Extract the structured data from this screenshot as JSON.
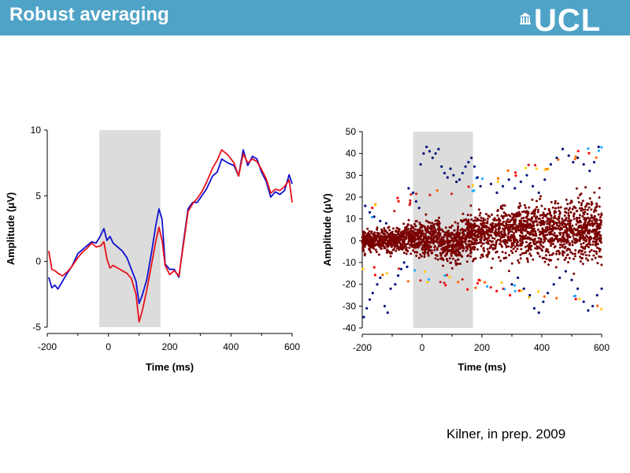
{
  "slide": {
    "title": "Robust averaging",
    "logo_text": "UCL",
    "citation": "Kilner, in prep. 2009"
  },
  "colors": {
    "header": "#4fa3c7",
    "shade": "#dcdcdc",
    "blue": "#1010d0",
    "red": "#e8101a",
    "dark_red": "#7a0000",
    "navy": "#00107a"
  },
  "chart_data": [
    {
      "type": "line",
      "xlabel": "Time (ms)",
      "ylabel": "Amplitude (μV)",
      "xlim": [
        -200,
        600
      ],
      "ylim": [
        -5,
        10
      ],
      "xticks": [
        -200,
        0,
        200,
        400,
        600
      ],
      "yticks": [
        -5,
        0,
        5,
        10
      ],
      "shaded_region": [
        -30,
        170
      ],
      "series": [
        {
          "color": "#1010d0",
          "x": [
            -195,
            -185,
            -175,
            -165,
            -150,
            -135,
            -120,
            -100,
            -85,
            -70,
            -55,
            -40,
            -25,
            -15,
            -5,
            5,
            15,
            30,
            45,
            60,
            75,
            90,
            100,
            110,
            125,
            140,
            155,
            165,
            175,
            185,
            200,
            215,
            230,
            245,
            260,
            275,
            290,
            305,
            320,
            340,
            355,
            370,
            390,
            410,
            425,
            440,
            455,
            470,
            485,
            500,
            515,
            530,
            545,
            560,
            575,
            590,
            600
          ],
          "y": [
            -1.2,
            -2.0,
            -1.8,
            -2.1,
            -1.5,
            -0.9,
            -0.4,
            0.6,
            0.9,
            1.2,
            1.5,
            1.4,
            2.0,
            2.5,
            1.6,
            1.9,
            1.4,
            1.1,
            0.8,
            0.3,
            -0.6,
            -1.5,
            -3.2,
            -2.6,
            -1.4,
            0.6,
            2.8,
            4.0,
            3.2,
            -0.2,
            -0.6,
            -0.6,
            -1.2,
            1.5,
            4.0,
            4.5,
            4.5,
            5.0,
            5.5,
            6.5,
            6.8,
            7.8,
            7.5,
            7.3,
            6.5,
            8.5,
            7.3,
            8.0,
            7.8,
            6.8,
            6.1,
            4.9,
            5.3,
            5.1,
            5.4,
            6.6,
            5.9
          ]
        },
        {
          "color": "#e8101a",
          "x": [
            -195,
            -185,
            -175,
            -165,
            -150,
            -135,
            -120,
            -100,
            -85,
            -70,
            -55,
            -40,
            -25,
            -15,
            -5,
            5,
            15,
            30,
            45,
            60,
            75,
            90,
            100,
            110,
            125,
            140,
            155,
            165,
            175,
            185,
            200,
            215,
            230,
            245,
            260,
            275,
            290,
            305,
            320,
            340,
            355,
            370,
            390,
            410,
            425,
            440,
            455,
            470,
            485,
            500,
            515,
            530,
            545,
            560,
            575,
            590,
            600
          ],
          "y": [
            0.8,
            -0.6,
            -0.7,
            -0.9,
            -1.1,
            -0.8,
            -0.4,
            0.3,
            0.7,
            1.0,
            1.4,
            1.1,
            1.2,
            1.5,
            0.2,
            -0.5,
            -0.3,
            -0.5,
            -0.7,
            -0.9,
            -1.3,
            -2.5,
            -4.6,
            -3.8,
            -2.2,
            -0.3,
            1.6,
            2.6,
            1.6,
            -0.3,
            -1.0,
            -0.7,
            -1.1,
            1.3,
            3.8,
            4.4,
            4.8,
            5.3,
            6.0,
            7.1,
            7.7,
            8.5,
            8.1,
            7.5,
            6.5,
            8.2,
            7.5,
            7.8,
            7.6,
            7.0,
            6.3,
            5.2,
            5.5,
            5.4,
            5.7,
            6.2,
            4.5
          ]
        }
      ]
    },
    {
      "type": "scatter",
      "xlabel": "Time (ms)",
      "ylabel": "Amplitude (μV)",
      "xlim": [
        -200,
        600
      ],
      "ylim": [
        -40,
        50
      ],
      "xticks": [
        -200,
        0,
        200,
        400,
        600
      ],
      "yticks": [
        -40,
        -30,
        -20,
        -10,
        0,
        10,
        20,
        30,
        40,
        50
      ],
      "shaded_region": [
        -30,
        170
      ],
      "outlier_points": [
        [
          -195,
          -35
        ],
        [
          -185,
          -31
        ],
        [
          -175,
          -27
        ],
        [
          -165,
          -24
        ],
        [
          -150,
          -20
        ],
        [
          -140,
          -17
        ],
        [
          -125,
          -30
        ],
        [
          -115,
          -33
        ],
        [
          -105,
          -22
        ],
        [
          -90,
          -20
        ],
        [
          -80,
          -16
        ],
        [
          -70,
          -13
        ],
        [
          -60,
          -10
        ],
        [
          -50,
          -12
        ],
        [
          -5,
          35
        ],
        [
          5,
          40
        ],
        [
          15,
          43
        ],
        [
          25,
          41
        ],
        [
          35,
          38
        ],
        [
          45,
          40
        ],
        [
          55,
          42
        ],
        [
          65,
          34
        ],
        [
          75,
          31
        ],
        [
          85,
          29
        ],
        [
          95,
          33
        ],
        [
          105,
          30
        ],
        [
          115,
          27
        ],
        [
          125,
          28
        ],
        [
          135,
          31
        ],
        [
          145,
          34
        ],
        [
          155,
          36
        ],
        [
          165,
          38
        ],
        [
          175,
          34
        ],
        [
          185,
          29
        ],
        [
          195,
          25
        ],
        [
          -45,
          24
        ],
        [
          -30,
          22
        ],
        [
          -20,
          18
        ],
        [
          -10,
          15
        ],
        [
          -190,
          16
        ],
        [
          -175,
          13
        ],
        [
          -160,
          11
        ],
        [
          -140,
          9
        ],
        [
          -120,
          8
        ],
        [
          300,
          -20
        ],
        [
          320,
          -17
        ],
        [
          340,
          -22
        ],
        [
          360,
          -25
        ],
        [
          375,
          -31
        ],
        [
          390,
          -33
        ],
        [
          405,
          -28
        ],
        [
          420,
          -24
        ],
        [
          440,
          -20
        ],
        [
          460,
          -17
        ],
        [
          480,
          -14
        ],
        [
          500,
          -18
        ],
        [
          520,
          -22
        ],
        [
          540,
          -28
        ],
        [
          555,
          -32
        ],
        [
          570,
          -30
        ],
        [
          585,
          -25
        ],
        [
          600,
          -22
        ],
        [
          430,
          35
        ],
        [
          450,
          38
        ],
        [
          470,
          42
        ],
        [
          490,
          39
        ],
        [
          505,
          36
        ],
        [
          520,
          38
        ],
        [
          540,
          35
        ],
        [
          560,
          32
        ],
        [
          575,
          36
        ],
        [
          590,
          43
        ],
        [
          230,
          26
        ],
        [
          250,
          22
        ],
        [
          270,
          25
        ],
        [
          290,
          28
        ],
        [
          310,
          24
        ],
        [
          330,
          27
        ],
        [
          350,
          30
        ],
        [
          370,
          25
        ],
        [
          390,
          22
        ],
        [
          410,
          28
        ]
      ]
    }
  ]
}
